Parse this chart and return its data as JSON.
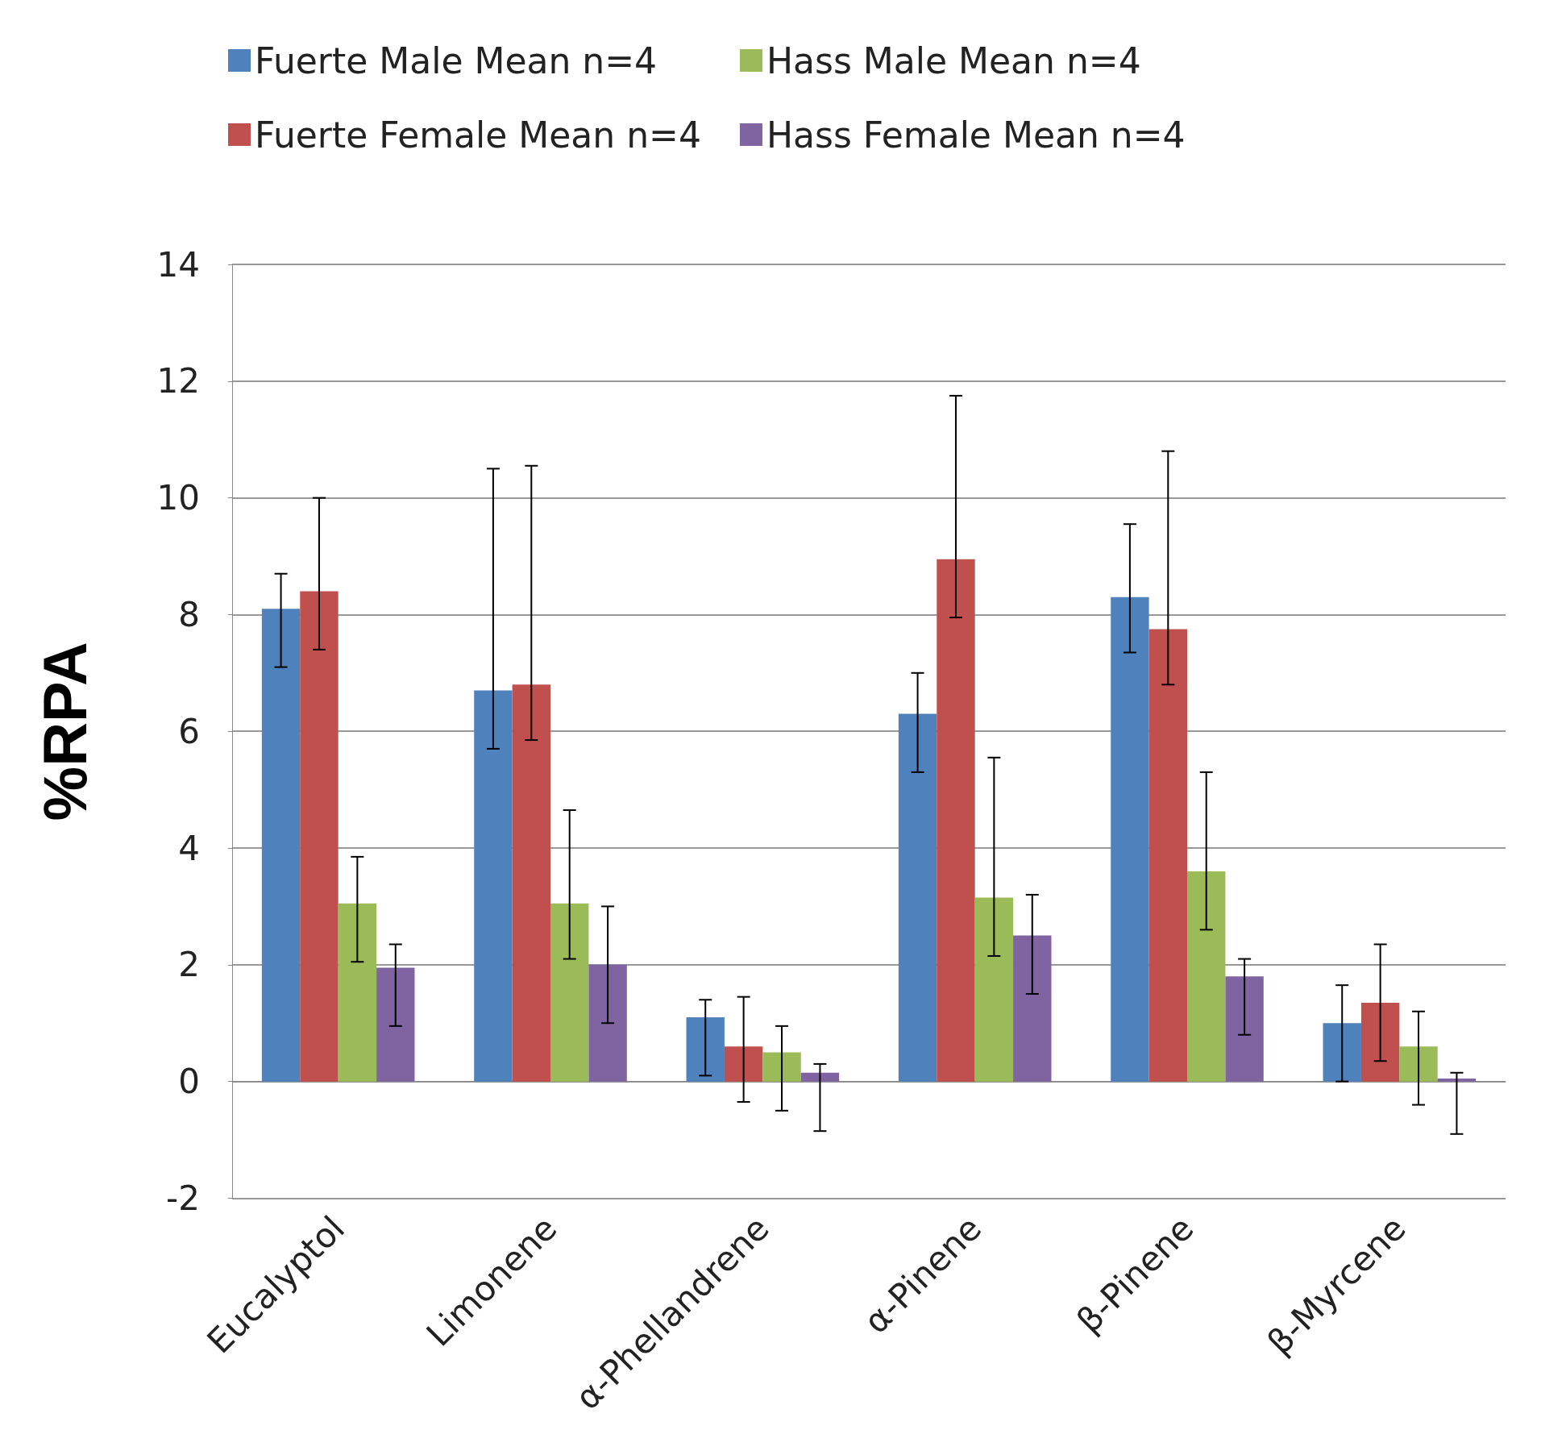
{
  "chart_data": {
    "type": "bar",
    "ylabel": "%RPA",
    "categories": [
      "Eucalyptol",
      "Limonene",
      "α-Phellandrene",
      "α-Pinene",
      "β-Pinene",
      "β-Myrcene"
    ],
    "series": [
      {
        "name": "Fuerte Male Mean n=4",
        "color": "#4f81bd",
        "values": [
          8.1,
          6.7,
          1.1,
          6.3,
          8.3,
          1.0
        ],
        "errors": [
          [
            7.1,
            8.7
          ],
          [
            5.7,
            10.5
          ],
          [
            0.1,
            1.4
          ],
          [
            5.3,
            7.0
          ],
          [
            7.35,
            9.55
          ],
          [
            0.0,
            1.65
          ]
        ]
      },
      {
        "name": "Fuerte Female Mean n=4",
        "color": "#c0504d",
        "values": [
          8.4,
          6.8,
          0.6,
          8.95,
          7.75,
          1.35
        ],
        "errors": [
          [
            7.4,
            10.0
          ],
          [
            5.85,
            10.55
          ],
          [
            -0.35,
            1.45
          ],
          [
            7.95,
            11.75
          ],
          [
            6.8,
            10.8
          ],
          [
            0.35,
            2.35
          ]
        ]
      },
      {
        "name": "Hass Male Mean n=4",
        "color": "#9bbb59",
        "values": [
          3.05,
          3.05,
          0.5,
          3.15,
          3.6,
          0.6
        ],
        "errors": [
          [
            2.05,
            3.85
          ],
          [
            2.1,
            4.65
          ],
          [
            -0.5,
            0.95
          ],
          [
            2.15,
            5.55
          ],
          [
            2.6,
            5.3
          ],
          [
            -0.4,
            1.2
          ]
        ]
      },
      {
        "name": "Hass Female Mean n=4",
        "color": "#8064a2",
        "values": [
          1.95,
          2.0,
          0.15,
          2.5,
          1.8,
          0.05
        ],
        "errors": [
          [
            0.95,
            2.35
          ],
          [
            1.0,
            3.0
          ],
          [
            -0.85,
            0.3
          ],
          [
            1.5,
            3.2
          ],
          [
            0.8,
            2.1
          ],
          [
            -0.9,
            0.15
          ]
        ]
      }
    ],
    "ylim": [
      -2,
      14
    ],
    "yticks": [
      -2,
      0,
      2,
      4,
      6,
      8,
      10,
      12,
      14
    ],
    "grid": "y",
    "legend": "top"
  }
}
